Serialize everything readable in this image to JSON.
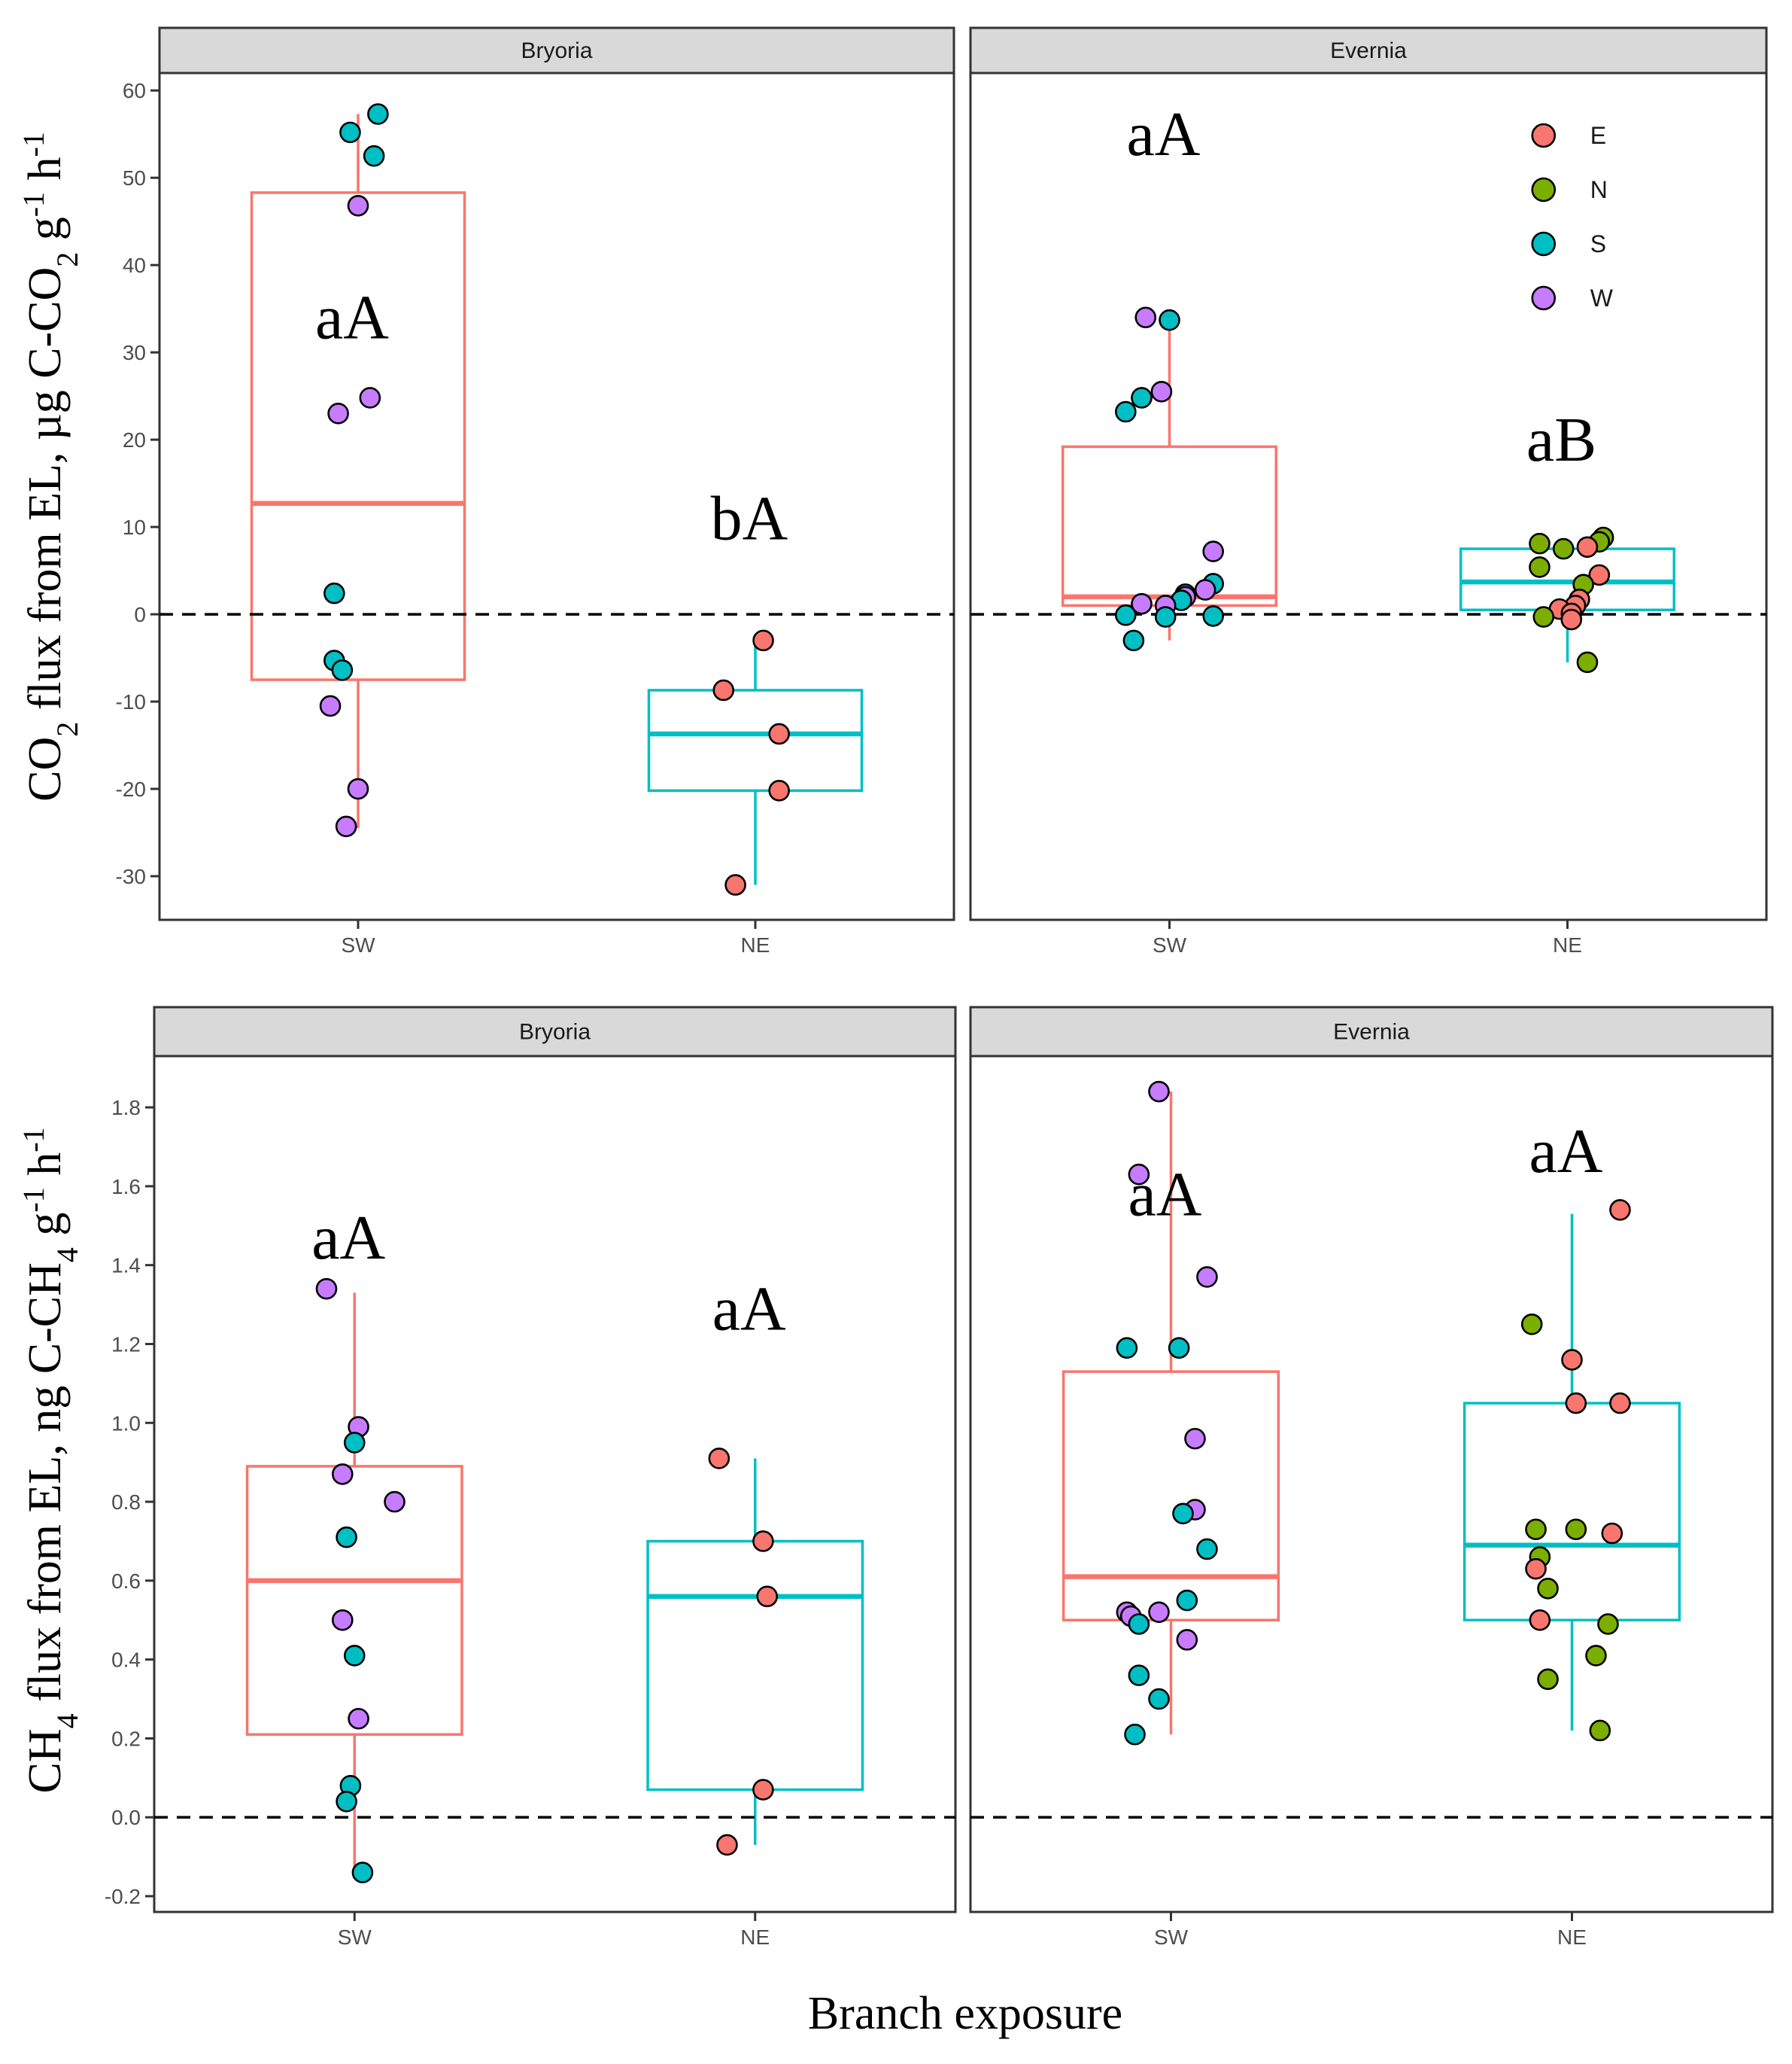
{
  "chart_data": [
    {
      "type": "box",
      "row": "top",
      "ylabel_parts": [
        "CO",
        "2",
        " flux from EL, µg C-CO",
        "2",
        " g",
        "-1",
        " h",
        "-1"
      ],
      "ylim": [
        -35,
        62
      ],
      "yticks": [
        -30,
        -20,
        -10,
        0,
        10,
        20,
        30,
        40,
        50,
        60
      ],
      "x_categories": [
        "SW",
        "NE"
      ],
      "zero_line": 0,
      "panels": [
        {
          "strip": "Bryoria",
          "groups": [
            {
              "x": "SW",
              "box_color": "#F8766D",
              "stats": {
                "lower_whisker": -24.5,
                "q1": -7.5,
                "median": 12.7,
                "q3": 48.3,
                "upper_whisker": 57.3
              },
              "label": "aA",
              "label_y": 34,
              "points": [
                {
                  "site": "S",
                  "y": 57.3,
                  "jitter": 0.05
                },
                {
                  "site": "S",
                  "y": 55.2,
                  "jitter": -0.02
                },
                {
                  "site": "S",
                  "y": 52.5,
                  "jitter": 0.04
                },
                {
                  "site": "W",
                  "y": 46.8,
                  "jitter": 0.0
                },
                {
                  "site": "W",
                  "y": 24.8,
                  "jitter": 0.03
                },
                {
                  "site": "W",
                  "y": 23.0,
                  "jitter": -0.05
                },
                {
                  "site": "S",
                  "y": 2.4,
                  "jitter": -0.06
                },
                {
                  "site": "S",
                  "y": -5.3,
                  "jitter": -0.06
                },
                {
                  "site": "S",
                  "y": -6.4,
                  "jitter": -0.04
                },
                {
                  "site": "W",
                  "y": -10.5,
                  "jitter": -0.07
                },
                {
                  "site": "W",
                  "y": -20.0,
                  "jitter": 0.0
                },
                {
                  "site": "W",
                  "y": -24.3,
                  "jitter": -0.03
                }
              ]
            },
            {
              "x": "NE",
              "box_color": "#00BFC4",
              "stats": {
                "lower_whisker": -31.0,
                "q1": -20.2,
                "median": -13.7,
                "q3": -8.7,
                "upper_whisker": -3.0
              },
              "label": "bA",
              "label_y": 11,
              "points": [
                {
                  "site": "E",
                  "y": -3.0,
                  "jitter": 0.02
                },
                {
                  "site": "E",
                  "y": -8.7,
                  "jitter": -0.08
                },
                {
                  "site": "E",
                  "y": -13.7,
                  "jitter": 0.06
                },
                {
                  "site": "E",
                  "y": -20.2,
                  "jitter": 0.06
                },
                {
                  "site": "E",
                  "y": -31.0,
                  "jitter": -0.05
                }
              ]
            }
          ]
        },
        {
          "strip": "Evernia",
          "legend": [
            {
              "label": "E",
              "color": "#F8766D"
            },
            {
              "label": "N",
              "color": "#7CAE00"
            },
            {
              "label": "S",
              "color": "#00BFC4"
            },
            {
              "label": "W",
              "color": "#C77CFF"
            }
          ],
          "groups": [
            {
              "x": "SW",
              "box_color": "#F8766D",
              "stats": {
                "lower_whisker": -3.0,
                "q1": 1.0,
                "median": 2.0,
                "q3": 19.2,
                "upper_whisker": 33.8
              },
              "label": "aA",
              "label_y": 55,
              "points": [
                {
                  "site": "W",
                  "y": 34.0,
                  "jitter": -0.06
                },
                {
                  "site": "S",
                  "y": 33.7,
                  "jitter": 0.0
                },
                {
                  "site": "W",
                  "y": 25.5,
                  "jitter": -0.02
                },
                {
                  "site": "S",
                  "y": 24.8,
                  "jitter": -0.07
                },
                {
                  "site": "S",
                  "y": 23.2,
                  "jitter": -0.11
                },
                {
                  "site": "W",
                  "y": 7.2,
                  "jitter": 0.11
                },
                {
                  "site": "S",
                  "y": 3.5,
                  "jitter": 0.11
                },
                {
                  "site": "W",
                  "y": 2.8,
                  "jitter": 0.09
                },
                {
                  "site": "S",
                  "y": 2.3,
                  "jitter": 0.04
                },
                {
                  "site": "W",
                  "y": 2.0,
                  "jitter": 0.04
                },
                {
                  "site": "S",
                  "y": 1.6,
                  "jitter": 0.03
                },
                {
                  "site": "W",
                  "y": 1.2,
                  "jitter": -0.07
                },
                {
                  "site": "W",
                  "y": 1.0,
                  "jitter": -0.01
                },
                {
                  "site": "S",
                  "y": -0.1,
                  "jitter": -0.11
                },
                {
                  "site": "S",
                  "y": -0.2,
                  "jitter": 0.11
                },
                {
                  "site": "S",
                  "y": -0.3,
                  "jitter": -0.01
                },
                {
                  "site": "S",
                  "y": -3.0,
                  "jitter": -0.09
                }
              ]
            },
            {
              "x": "NE",
              "box_color": "#00BFC4",
              "stats": {
                "lower_whisker": -5.5,
                "q1": 0.5,
                "median": 3.7,
                "q3": 7.5,
                "upper_whisker": 8.5
              },
              "label": "aB",
              "label_y": 20,
              "points": [
                {
                  "site": "N",
                  "y": 8.8,
                  "jitter": 0.09
                },
                {
                  "site": "N",
                  "y": 8.1,
                  "jitter": -0.07
                },
                {
                  "site": "N",
                  "y": 8.3,
                  "jitter": 0.08
                },
                {
                  "site": "E",
                  "y": 7.7,
                  "jitter": 0.05
                },
                {
                  "site": "N",
                  "y": 7.5,
                  "jitter": -0.01
                },
                {
                  "site": "N",
                  "y": 5.4,
                  "jitter": -0.07
                },
                {
                  "site": "E",
                  "y": 4.5,
                  "jitter": 0.08
                },
                {
                  "site": "N",
                  "y": 3.4,
                  "jitter": 0.04
                },
                {
                  "site": "E",
                  "y": 1.7,
                  "jitter": 0.03
                },
                {
                  "site": "E",
                  "y": 1.0,
                  "jitter": 0.02
                },
                {
                  "site": "E",
                  "y": 0.6,
                  "jitter": -0.02
                },
                {
                  "site": "E",
                  "y": 0.1,
                  "jitter": 0.01
                },
                {
                  "site": "N",
                  "y": -0.3,
                  "jitter": -0.06
                },
                {
                  "site": "E",
                  "y": -0.6,
                  "jitter": 0.01
                },
                {
                  "site": "N",
                  "y": -5.5,
                  "jitter": 0.05
                }
              ]
            }
          ]
        }
      ]
    },
    {
      "type": "box",
      "row": "bottom",
      "ylabel_parts": [
        "CH",
        "4",
        " flux from EL, ng C-CH",
        "4",
        " g",
        "-1",
        " h",
        "-1"
      ],
      "ylim": [
        -0.24,
        1.93
      ],
      "yticks": [
        -0.2,
        0.0,
        0.2,
        0.4,
        0.6,
        0.8,
        1.0,
        1.2,
        1.4,
        1.6,
        1.8
      ],
      "ytick_labels": [
        "-0.2",
        "0.0",
        "0.2",
        "0.4",
        "0.6",
        "0.8",
        "1.0",
        "1.2",
        "1.4",
        "1.6",
        "1.8"
      ],
      "x_categories": [
        "SW",
        "NE"
      ],
      "zero_line": 0,
      "panels": [
        {
          "strip": "Bryoria",
          "groups": [
            {
              "x": "SW",
              "box_color": "#F8766D",
              "stats": {
                "lower_whisker": -0.14,
                "q1": 0.21,
                "median": 0.6,
                "q3": 0.89,
                "upper_whisker": 1.33
              },
              "label": "aA",
              "label_y": 1.47,
              "points": [
                {
                  "site": "W",
                  "y": 1.34,
                  "jitter": -0.07
                },
                {
                  "site": "W",
                  "y": 0.99,
                  "jitter": 0.01
                },
                {
                  "site": "S",
                  "y": 0.95,
                  "jitter": 0.0
                },
                {
                  "site": "W",
                  "y": 0.87,
                  "jitter": -0.03
                },
                {
                  "site": "W",
                  "y": 0.8,
                  "jitter": 0.1
                },
                {
                  "site": "S",
                  "y": 0.71,
                  "jitter": -0.02
                },
                {
                  "site": "W",
                  "y": 0.5,
                  "jitter": -0.03
                },
                {
                  "site": "S",
                  "y": 0.41,
                  "jitter": 0.0
                },
                {
                  "site": "W",
                  "y": 0.25,
                  "jitter": 0.01
                },
                {
                  "site": "S",
                  "y": 0.08,
                  "jitter": -0.01
                },
                {
                  "site": "S",
                  "y": 0.04,
                  "jitter": -0.02
                },
                {
                  "site": "S",
                  "y": -0.14,
                  "jitter": 0.02
                }
              ]
            },
            {
              "x": "NE",
              "box_color": "#00BFC4",
              "stats": {
                "lower_whisker": -0.07,
                "q1": 0.07,
                "median": 0.56,
                "q3": 0.7,
                "upper_whisker": 0.91
              },
              "label": "aA",
              "label_y": 1.29,
              "points": [
                {
                  "site": "E",
                  "y": 0.91,
                  "jitter": -0.09
                },
                {
                  "site": "E",
                  "y": 0.7,
                  "jitter": 0.02
                },
                {
                  "site": "E",
                  "y": 0.56,
                  "jitter": 0.03
                },
                {
                  "site": "E",
                  "y": 0.07,
                  "jitter": 0.02
                },
                {
                  "site": "E",
                  "y": -0.07,
                  "jitter": -0.07
                }
              ]
            }
          ]
        },
        {
          "strip": "Evernia",
          "groups": [
            {
              "x": "SW",
              "box_color": "#F8766D",
              "stats": {
                "lower_whisker": 0.21,
                "q1": 0.5,
                "median": 0.61,
                "q3": 1.13,
                "upper_whisker": 1.84
              },
              "label": "aA",
              "label_y": 1.58,
              "points": [
                {
                  "site": "W",
                  "y": 1.84,
                  "jitter": -0.03
                },
                {
                  "site": "W",
                  "y": 1.63,
                  "jitter": -0.08
                },
                {
                  "site": "W",
                  "y": 1.37,
                  "jitter": 0.09
                },
                {
                  "site": "S",
                  "y": 1.19,
                  "jitter": -0.11
                },
                {
                  "site": "S",
                  "y": 1.19,
                  "jitter": 0.02
                },
                {
                  "site": "W",
                  "y": 0.96,
                  "jitter": 0.06
                },
                {
                  "site": "W",
                  "y": 0.78,
                  "jitter": 0.06
                },
                {
                  "site": "S",
                  "y": 0.77,
                  "jitter": 0.03
                },
                {
                  "site": "S",
                  "y": 0.68,
                  "jitter": 0.09
                },
                {
                  "site": "S",
                  "y": 0.55,
                  "jitter": 0.04
                },
                {
                  "site": "W",
                  "y": 0.52,
                  "jitter": -0.11
                },
                {
                  "site": "W",
                  "y": 0.52,
                  "jitter": -0.03
                },
                {
                  "site": "W",
                  "y": 0.51,
                  "jitter": -0.1
                },
                {
                  "site": "S",
                  "y": 0.49,
                  "jitter": -0.08
                },
                {
                  "site": "W",
                  "y": 0.45,
                  "jitter": 0.04
                },
                {
                  "site": "S",
                  "y": 0.36,
                  "jitter": -0.08
                },
                {
                  "site": "S",
                  "y": 0.3,
                  "jitter": -0.03
                },
                {
                  "site": "S",
                  "y": 0.21,
                  "jitter": -0.09
                }
              ]
            },
            {
              "x": "NE",
              "box_color": "#00BFC4",
              "stats": {
                "lower_whisker": 0.22,
                "q1": 0.5,
                "median": 0.69,
                "q3": 1.05,
                "upper_whisker": 1.53
              },
              "label": "aA",
              "label_y": 1.69,
              "points": [
                {
                  "site": "E",
                  "y": 1.54,
                  "jitter": 0.12
                },
                {
                  "site": "N",
                  "y": 1.25,
                  "jitter": -0.1
                },
                {
                  "site": "E",
                  "y": 1.16,
                  "jitter": 0.0
                },
                {
                  "site": "E",
                  "y": 1.05,
                  "jitter": 0.01
                },
                {
                  "site": "E",
                  "y": 1.05,
                  "jitter": 0.12
                },
                {
                  "site": "N",
                  "y": 0.73,
                  "jitter": -0.09
                },
                {
                  "site": "N",
                  "y": 0.73,
                  "jitter": 0.01
                },
                {
                  "site": "E",
                  "y": 0.72,
                  "jitter": 0.1
                },
                {
                  "site": "N",
                  "y": 0.66,
                  "jitter": -0.08
                },
                {
                  "site": "E",
                  "y": 0.63,
                  "jitter": -0.09
                },
                {
                  "site": "N",
                  "y": 0.58,
                  "jitter": -0.06
                },
                {
                  "site": "E",
                  "y": 0.5,
                  "jitter": -0.08
                },
                {
                  "site": "N",
                  "y": 0.49,
                  "jitter": 0.09
                },
                {
                  "site": "N",
                  "y": 0.41,
                  "jitter": 0.06
                },
                {
                  "site": "N",
                  "y": 0.35,
                  "jitter": -0.06
                },
                {
                  "site": "N",
                  "y": 0.22,
                  "jitter": 0.07
                }
              ]
            }
          ]
        }
      ]
    }
  ],
  "xlabel": "Branch exposure",
  "colors": {
    "E": "#F8766D",
    "N": "#7CAE00",
    "S": "#00BFC4",
    "W": "#C77CFF"
  }
}
